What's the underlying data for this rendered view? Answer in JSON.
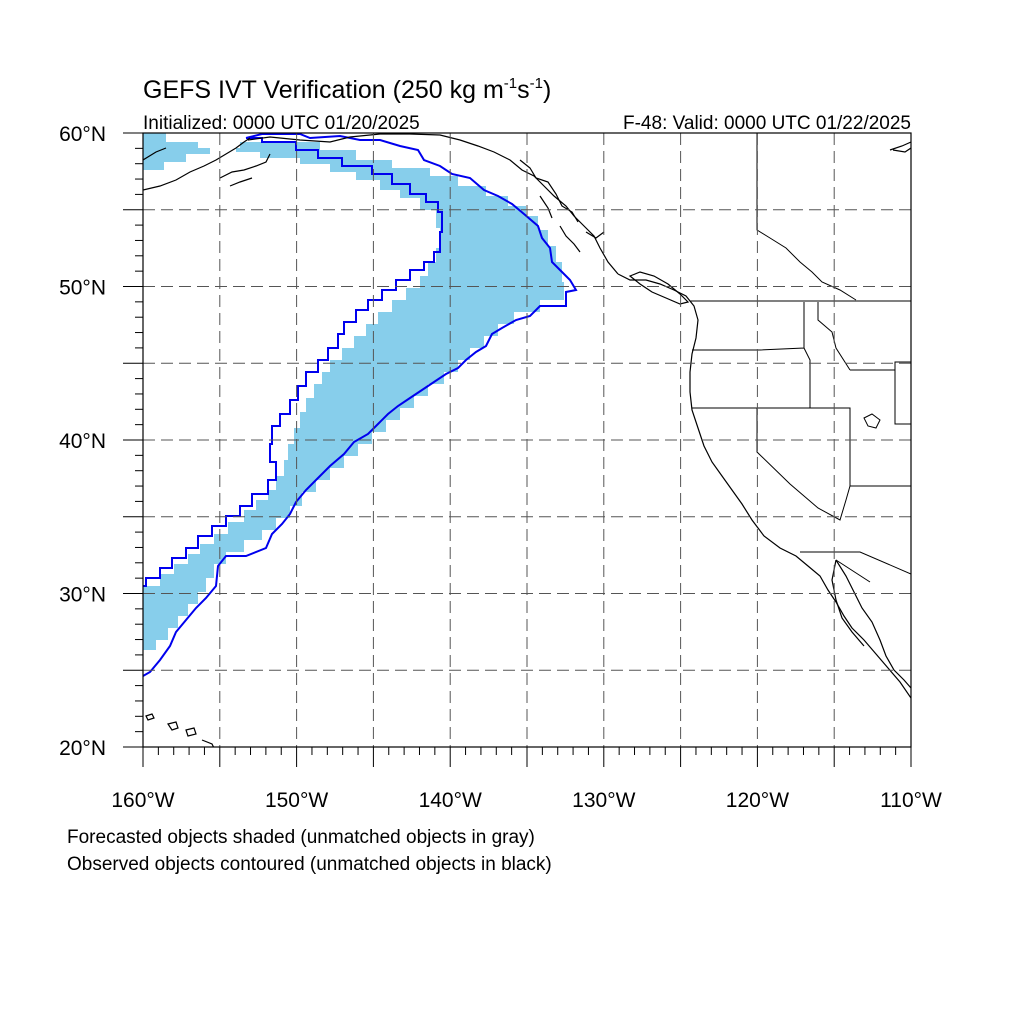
{
  "figure": {
    "title_main": "GEFS IVT Verification (250 kg m",
    "title_sup1": "-1",
    "title_mid": "s",
    "title_sup2": "-1",
    "title_end": ")",
    "subtitle_left": "Initialized: 0000 UTC 01/20/2025",
    "subtitle_right": "F-48: Valid: 0000 UTC 01/22/2025",
    "caption_line1": "Forecasted objects shaded (unmatched objects in gray)",
    "caption_line2": "Observed objects contoured (unmatched objects in black)"
  },
  "map": {
    "projection": "lat-lon",
    "lon_range": [
      -160,
      -110
    ],
    "lat_range": [
      20,
      60
    ],
    "lat_labels": [
      {
        "lat": 60,
        "text": "60°N"
      },
      {
        "lat": 50,
        "text": "50°N"
      },
      {
        "lat": 40,
        "text": "40°N"
      },
      {
        "lat": 30,
        "text": "30°N"
      },
      {
        "lat": 20,
        "text": "20°N"
      }
    ],
    "lon_labels": [
      {
        "lon": -160,
        "text": "160°W"
      },
      {
        "lon": -150,
        "text": "150°W"
      },
      {
        "lon": -140,
        "text": "140°W"
      },
      {
        "lon": -130,
        "text": "130°W"
      },
      {
        "lon": -120,
        "text": "120°W"
      },
      {
        "lon": -110,
        "text": "110°W"
      }
    ],
    "gridline_style": "dashed",
    "forecast_fill_color": "#87CEEB",
    "observed_contour_color": "#0000EE",
    "coastline_color": "#000000"
  }
}
